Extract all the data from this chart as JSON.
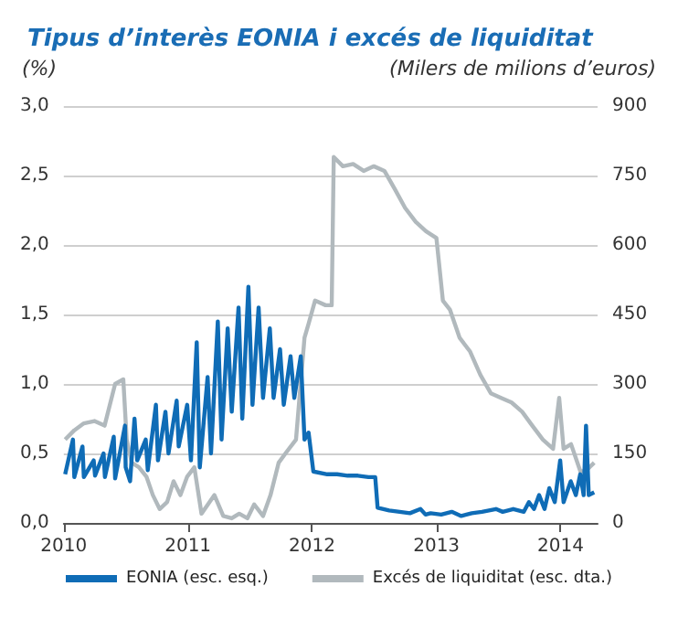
{
  "chart_data": {
    "type": "line",
    "title": "Tipus d’interès EONIA i excés de liquiditat",
    "ylabel": "(%)",
    "y2label": "(Milers de milions d’euros)",
    "xlim": [
      "2010-01-01",
      "2014-04-20"
    ],
    "xticks": [
      {
        "value": "2010-01-01",
        "label": "2010"
      },
      {
        "value": "2011-01-01",
        "label": "2011"
      },
      {
        "value": "2012-01-01",
        "label": "2012"
      },
      {
        "value": "2013-01-01",
        "label": "2013"
      },
      {
        "value": "2014-01-01",
        "label": "2014"
      }
    ],
    "ylim": [
      0,
      3
    ],
    "yticks": [
      {
        "value": 0,
        "label": "0,0"
      },
      {
        "value": 0.5,
        "label": "0,5"
      },
      {
        "value": 1,
        "label": "1,0"
      },
      {
        "value": 1.5,
        "label": "1,5"
      },
      {
        "value": 2,
        "label": "2,0"
      },
      {
        "value": 2.5,
        "label": "2,5"
      },
      {
        "value": 3,
        "label": "3,0"
      }
    ],
    "y2lim": [
      0,
      900
    ],
    "y2ticks": [
      0,
      150,
      300,
      450,
      600,
      750,
      900
    ],
    "grid": "y",
    "legend": "bottom",
    "marker": "none",
    "line_style": "solid",
    "series": [
      {
        "name": "EONIA (esc. esq.)",
        "color": "#0f6cb6",
        "x": [
          "2010-01-05",
          "2010-01-28",
          "2010-02-01",
          "2010-02-25",
          "2010-03-01",
          "2010-03-30",
          "2010-04-03",
          "2010-04-28",
          "2010-05-02",
          "2010-05-28",
          "2010-06-01",
          "2010-06-30",
          "2010-07-02",
          "2010-07-15",
          "2010-07-28",
          "2010-08-05",
          "2010-08-30",
          "2010-09-05",
          "2010-09-29",
          "2010-10-05",
          "2010-10-27",
          "2010-11-05",
          "2010-11-29",
          "2010-12-05",
          "2010-12-30",
          "2011-01-10",
          "2011-01-27",
          "2011-02-05",
          "2011-02-28",
          "2011-03-10",
          "2011-03-30",
          "2011-04-10",
          "2011-04-28",
          "2011-05-10",
          "2011-05-30",
          "2011-06-10",
          "2011-06-28",
          "2011-07-10",
          "2011-07-28",
          "2011-08-10",
          "2011-08-30",
          "2011-09-10",
          "2011-09-29",
          "2011-10-10",
          "2011-10-30",
          "2011-11-10",
          "2011-11-29",
          "2011-12-10",
          "2011-12-22",
          "2012-01-05",
          "2012-02-15",
          "2012-03-15",
          "2012-04-15",
          "2012-05-15",
          "2012-06-15",
          "2012-07-05",
          "2012-07-12",
          "2012-08-15",
          "2012-09-15",
          "2012-10-15",
          "2012-11-15",
          "2012-11-30",
          "2012-12-15",
          "2013-01-15",
          "2013-02-15",
          "2013-03-15",
          "2013-04-15",
          "2013-05-15",
          "2013-06-25",
          "2013-07-15",
          "2013-08-15",
          "2013-09-15",
          "2013-09-30",
          "2013-10-15",
          "2013-10-30",
          "2013-11-15",
          "2013-11-29",
          "2013-12-15",
          "2013-12-31",
          "2014-01-10",
          "2014-01-31",
          "2014-02-15",
          "2014-02-28",
          "2014-03-10",
          "2014-03-17",
          "2014-03-25",
          "2014-04-10"
        ],
        "values": [
          0.35,
          0.6,
          0.33,
          0.55,
          0.33,
          0.45,
          0.34,
          0.5,
          0.33,
          0.62,
          0.32,
          0.7,
          0.4,
          0.3,
          0.75,
          0.45,
          0.6,
          0.38,
          0.85,
          0.45,
          0.8,
          0.5,
          0.88,
          0.55,
          0.85,
          0.45,
          1.3,
          0.4,
          1.05,
          0.5,
          1.45,
          0.6,
          1.4,
          0.8,
          1.55,
          0.75,
          1.7,
          0.85,
          1.55,
          0.9,
          1.4,
          0.9,
          1.25,
          0.85,
          1.2,
          0.9,
          1.2,
          0.6,
          0.65,
          0.37,
          0.35,
          0.35,
          0.34,
          0.34,
          0.33,
          0.33,
          0.11,
          0.09,
          0.08,
          0.07,
          0.1,
          0.06,
          0.07,
          0.06,
          0.08,
          0.05,
          0.07,
          0.08,
          0.1,
          0.08,
          0.1,
          0.08,
          0.15,
          0.1,
          0.2,
          0.1,
          0.25,
          0.15,
          0.45,
          0.15,
          0.3,
          0.2,
          0.35,
          0.2,
          0.7,
          0.2,
          0.22
        ]
      },
      {
        "name": "Excés de liquiditat (esc. dta.)",
        "color": "#b1b9bd",
        "axis": "y2",
        "x": [
          "2010-01-05",
          "2010-02-01",
          "2010-03-01",
          "2010-04-01",
          "2010-05-01",
          "2010-06-01",
          "2010-06-25",
          "2010-07-05",
          "2010-07-20",
          "2010-08-10",
          "2010-09-01",
          "2010-09-20",
          "2010-10-10",
          "2010-11-01",
          "2010-11-20",
          "2010-12-10",
          "2010-12-30",
          "2011-01-20",
          "2011-02-10",
          "2011-03-01",
          "2011-03-20",
          "2011-04-15",
          "2011-05-10",
          "2011-06-01",
          "2011-06-25",
          "2011-07-15",
          "2011-08-10",
          "2011-09-01",
          "2011-09-25",
          "2011-10-20",
          "2011-11-15",
          "2011-12-10",
          "2011-12-22",
          "2012-01-10",
          "2012-02-10",
          "2012-02-28",
          "2012-03-05",
          "2012-04-01",
          "2012-05-01",
          "2012-06-01",
          "2012-07-01",
          "2012-08-01",
          "2012-09-01",
          "2012-10-01",
          "2012-11-01",
          "2012-12-01",
          "2013-01-01",
          "2013-01-20",
          "2013-02-10",
          "2013-03-10",
          "2013-04-10",
          "2013-05-10",
          "2013-06-10",
          "2013-07-10",
          "2013-08-10",
          "2013-09-10",
          "2013-10-10",
          "2013-11-10",
          "2013-12-10",
          "2013-12-28",
          "2014-01-10",
          "2014-02-01",
          "2014-03-01",
          "2014-03-20",
          "2014-04-10"
        ],
        "values": [
          180,
          200,
          215,
          220,
          210,
          300,
          310,
          180,
          130,
          120,
          100,
          60,
          30,
          45,
          90,
          60,
          100,
          120,
          20,
          40,
          60,
          15,
          10,
          20,
          10,
          40,
          15,
          60,
          130,
          155,
          180,
          400,
          430,
          480,
          470,
          470,
          790,
          770,
          775,
          760,
          770,
          760,
          720,
          680,
          650,
          630,
          615,
          480,
          460,
          400,
          370,
          320,
          280,
          270,
          260,
          240,
          210,
          180,
          160,
          270,
          160,
          170,
          110,
          115,
          130
        ]
      }
    ]
  }
}
